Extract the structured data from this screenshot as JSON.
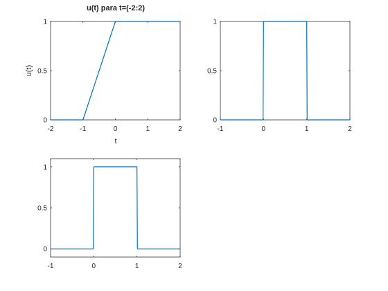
{
  "chart_data": [
    {
      "type": "line",
      "title": "u(t) para t=(-2:2)",
      "xlabel": "t",
      "ylabel": "u(t)",
      "xlim": [
        -2,
        2
      ],
      "ylim": [
        0,
        1
      ],
      "xticks": [
        -2,
        -1,
        0,
        1,
        2
      ],
      "yticks": [
        0,
        0.5,
        1
      ],
      "xtick_labels": [
        "-2",
        "-1",
        "0",
        "1",
        "2"
      ],
      "ytick_labels": [
        "0",
        "0.5",
        "1"
      ],
      "grid": false,
      "series": [
        {
          "color": "#0072BD",
          "x": [
            -2,
            -1,
            0,
            2
          ],
          "y": [
            0,
            0,
            1,
            1
          ]
        }
      ]
    },
    {
      "type": "line",
      "title": "",
      "xlabel": "",
      "ylabel": "",
      "xlim": [
        -1,
        2
      ],
      "ylim": [
        0,
        1
      ],
      "xticks": [
        -1,
        0,
        1,
        2
      ],
      "yticks": [
        0,
        0.5,
        1
      ],
      "xtick_labels": [
        "-1",
        "0",
        "1",
        "2"
      ],
      "ytick_labels": [
        "0",
        "0.5",
        "1"
      ],
      "grid": false,
      "series": [
        {
          "color": "#0072BD",
          "x": [
            -1,
            -0.01,
            0,
            1,
            1.01,
            2
          ],
          "y": [
            0,
            0,
            1,
            1,
            0,
            0
          ]
        }
      ]
    },
    {
      "type": "line",
      "title": "",
      "xlabel": "",
      "ylabel": "",
      "xlim": [
        -1,
        2
      ],
      "ylim": [
        -0.1,
        1.1
      ],
      "xticks": [
        -1,
        0,
        1,
        2
      ],
      "yticks": [
        0,
        0.5,
        1
      ],
      "xtick_labels": [
        "-1",
        "0",
        "1",
        "2"
      ],
      "ytick_labels": [
        "0",
        "0.5",
        "1"
      ],
      "grid": false,
      "series": [
        {
          "color": "#0072BD",
          "x": [
            -1,
            -0.01,
            0,
            1,
            1.01,
            2
          ],
          "y": [
            0,
            0,
            1,
            1,
            0,
            0
          ]
        }
      ]
    }
  ]
}
